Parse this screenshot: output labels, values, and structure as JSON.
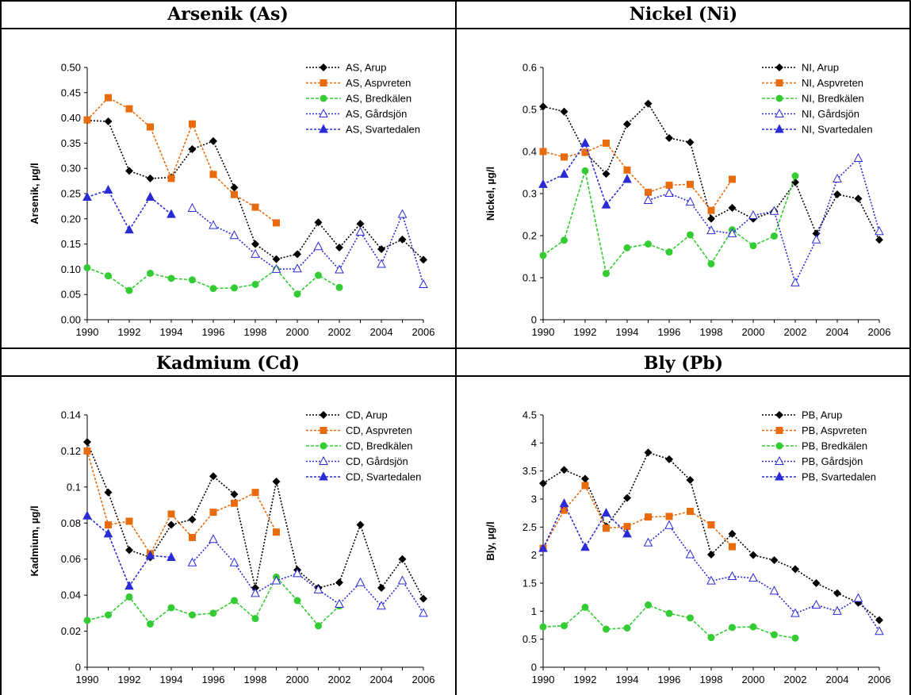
{
  "colors": {
    "arup": "#000000",
    "aspvreten": "#E86C0E",
    "bredkalen": "#33CC33",
    "gardsjon": "#2B2BD6",
    "svartedalen": "#2B2BD6"
  },
  "chart_data": [
    {
      "type": "line",
      "title": "Arsenik (As)",
      "ylabel": "Arsenik, µg/l",
      "xlabel": "",
      "xlim": [
        1990,
        2006
      ],
      "ylim": [
        0,
        0.5
      ],
      "xticks": [
        "1990",
        "1992",
        "1994",
        "1996",
        "1998",
        "2000",
        "2002",
        "2004",
        "2006"
      ],
      "yticks": [
        "0.00",
        "0.05",
        "0.10",
        "0.15",
        "0.20",
        "0.25",
        "0.30",
        "0.35",
        "0.40",
        "0.45",
        "0.50"
      ],
      "legend": "top-right",
      "grid": false,
      "series": [
        {
          "name": "AS, Arup",
          "key": "arup",
          "x": [
            1990,
            1991,
            1992,
            1993,
            1994,
            1995,
            1996,
            1997,
            1998,
            1999,
            2000,
            2001,
            2002,
            2003,
            2004,
            2005,
            2006
          ],
          "y": [
            0.395,
            0.393,
            0.295,
            0.28,
            0.282,
            0.338,
            0.354,
            0.262,
            0.15,
            0.12,
            0.13,
            0.193,
            0.143,
            0.19,
            0.14,
            0.159,
            0.119
          ]
        },
        {
          "name": "AS, Aspvreten",
          "key": "aspvreten",
          "x": [
            1990,
            1991,
            1992,
            1993,
            1994,
            1995,
            1996,
            1997,
            1998,
            1999
          ],
          "y": [
            0.396,
            0.44,
            0.418,
            0.382,
            0.28,
            0.388,
            0.288,
            0.248,
            0.223,
            0.192
          ]
        },
        {
          "name": "AS, Bredkälen",
          "key": "bredkalen",
          "x": [
            1990,
            1991,
            1992,
            1993,
            1994,
            1995,
            1996,
            1997,
            1998,
            1999,
            2000,
            2001,
            2002
          ],
          "y": [
            0.103,
            0.087,
            0.058,
            0.092,
            0.082,
            0.079,
            0.062,
            0.063,
            0.07,
            0.1,
            0.051,
            0.088,
            0.064
          ]
        },
        {
          "name": "AS, Gårdsjön",
          "key": "gardsjon",
          "x": [
            1995,
            1996,
            1997,
            1998,
            1999,
            2000,
            2001,
            2002,
            2003,
            2004,
            2005,
            2006
          ],
          "y": [
            0.221,
            0.187,
            0.167,
            0.13,
            0.1,
            0.101,
            0.145,
            0.099,
            0.174,
            0.11,
            0.209,
            0.07
          ]
        },
        {
          "name": "AS, Svartedalen",
          "key": "svartedalen",
          "x": [
            1990,
            1991,
            1992,
            1993,
            1994
          ],
          "y": [
            0.243,
            0.257,
            0.178,
            0.243,
            0.209
          ]
        }
      ]
    },
    {
      "type": "line",
      "title": "Nickel (Ni)",
      "ylabel": "Nickel, µg/l",
      "xlabel": "",
      "xlim": [
        1990,
        2006
      ],
      "ylim": [
        0,
        0.6
      ],
      "xticks": [
        "1990",
        "1992",
        "1994",
        "1996",
        "1998",
        "2000",
        "2002",
        "2004",
        "2006"
      ],
      "yticks": [
        "0",
        "0.1",
        "0.2",
        "0.3",
        "0.4",
        "0.5",
        "0.6"
      ],
      "legend": "top-right",
      "grid": false,
      "series": [
        {
          "name": "NI, Arup",
          "key": "arup",
          "x": [
            1990,
            1991,
            1992,
            1993,
            1994,
            1995,
            1996,
            1997,
            1998,
            1999,
            2000,
            2001,
            2002,
            2003,
            2004,
            2005,
            2006
          ],
          "y": [
            0.507,
            0.495,
            0.398,
            0.347,
            0.465,
            0.514,
            0.432,
            0.422,
            0.24,
            0.266,
            0.24,
            0.258,
            0.327,
            0.205,
            0.298,
            0.288,
            0.19
          ]
        },
        {
          "name": "NI, Aspvreten",
          "key": "aspvreten",
          "x": [
            1990,
            1991,
            1992,
            1993,
            1994,
            1995,
            1996,
            1997,
            1998,
            1999
          ],
          "y": [
            0.4,
            0.387,
            0.398,
            0.42,
            0.356,
            0.303,
            0.32,
            0.322,
            0.26,
            0.334
          ]
        },
        {
          "name": "NI, Bredkälen",
          "key": "bredkalen",
          "x": [
            1990,
            1991,
            1992,
            1993,
            1994,
            1995,
            1996,
            1997,
            1998,
            1999,
            2000,
            2001,
            2002
          ],
          "y": [
            0.153,
            0.189,
            0.354,
            0.11,
            0.171,
            0.18,
            0.161,
            0.202,
            0.133,
            0.214,
            0.176,
            0.199,
            0.342
          ]
        },
        {
          "name": "NI, Gårdsjön",
          "key": "gardsjon",
          "x": [
            1995,
            1996,
            1997,
            1998,
            1999,
            2000,
            2001,
            2002,
            2003,
            2004,
            2005,
            2006
          ],
          "y": [
            0.284,
            0.301,
            0.28,
            0.212,
            0.205,
            0.248,
            0.258,
            0.088,
            0.19,
            0.335,
            0.384,
            0.21
          ]
        },
        {
          "name": "NI, Svartedalen",
          "key": "svartedalen",
          "x": [
            1990,
            1991,
            1992,
            1993,
            1994
          ],
          "y": [
            0.322,
            0.346,
            0.42,
            0.273,
            0.334
          ]
        }
      ]
    },
    {
      "type": "line",
      "title": "Kadmium (Cd)",
      "ylabel": "Kadmium, µg/l",
      "xlabel": "",
      "xlim": [
        1990,
        2006
      ],
      "ylim": [
        0,
        0.14
      ],
      "xticks": [
        "1990",
        "1992",
        "1994",
        "1996",
        "1998",
        "2000",
        "2002",
        "2004",
        "2006"
      ],
      "yticks": [
        "0",
        "0.02",
        "0.04",
        "0.06",
        "0.08",
        "0.1",
        "0.12",
        "0.14"
      ],
      "legend": "top-right",
      "grid": false,
      "series": [
        {
          "name": "CD, Arup",
          "key": "arup",
          "x": [
            1990,
            1991,
            1992,
            1993,
            1994,
            1995,
            1996,
            1997,
            1998,
            1999,
            2000,
            2001,
            2002,
            2003,
            2004,
            2005,
            2006
          ],
          "y": [
            0.125,
            0.097,
            0.065,
            0.061,
            0.079,
            0.082,
            0.106,
            0.096,
            0.044,
            0.103,
            0.054,
            0.044,
            0.047,
            0.079,
            0.044,
            0.06,
            0.038
          ]
        },
        {
          "name": "CD, Aspvreten",
          "key": "aspvreten",
          "x": [
            1990,
            1991,
            1992,
            1993,
            1994,
            1995,
            1996,
            1997,
            1998,
            1999
          ],
          "y": [
            0.12,
            0.079,
            0.081,
            0.063,
            0.085,
            0.072,
            0.086,
            0.091,
            0.097,
            0.075
          ]
        },
        {
          "name": "CD, Bredkälen",
          "key": "bredkalen",
          "x": [
            1990,
            1991,
            1992,
            1993,
            1994,
            1995,
            1996,
            1997,
            1998,
            1999,
            2000,
            2001,
            2002
          ],
          "y": [
            0.026,
            0.029,
            0.039,
            0.024,
            0.033,
            0.029,
            0.03,
            0.037,
            0.027,
            0.05,
            0.037,
            0.023,
            0.034
          ]
        },
        {
          "name": "CD, Gårdsjön",
          "key": "gardsjon",
          "x": [
            1995,
            1996,
            1997,
            1998,
            1999,
            2000,
            2001,
            2002,
            2003,
            2004,
            2005,
            2006
          ],
          "y": [
            0.058,
            0.071,
            0.058,
            0.041,
            0.048,
            0.052,
            0.043,
            0.035,
            0.047,
            0.034,
            0.048,
            0.03
          ]
        },
        {
          "name": "CD, Svartedalen",
          "key": "svartedalen",
          "x": [
            1990,
            1991,
            1992,
            1993,
            1994
          ],
          "y": [
            0.084,
            0.074,
            0.045,
            0.062,
            0.061
          ]
        }
      ]
    },
    {
      "type": "line",
      "title": "Bly (Pb)",
      "ylabel": "Bly, µg/l",
      "xlabel": "",
      "xlim": [
        1990,
        2006
      ],
      "ylim": [
        0,
        4.5
      ],
      "xticks": [
        "1990",
        "1992",
        "1994",
        "1996",
        "1998",
        "2000",
        "2002",
        "2004",
        "2006"
      ],
      "yticks": [
        "0",
        "0.5",
        "1",
        "1.5",
        "2",
        "2.5",
        "3",
        "3.5",
        "4",
        "4.5"
      ],
      "legend": "top-right",
      "grid": false,
      "series": [
        {
          "name": "PB, Arup",
          "key": "arup",
          "x": [
            1990,
            1991,
            1992,
            1993,
            1994,
            1995,
            1996,
            1997,
            1998,
            1999,
            2000,
            2001,
            2002,
            2003,
            2004,
            2005,
            2006
          ],
          "y": [
            3.28,
            3.52,
            3.36,
            2.51,
            3.02,
            3.83,
            3.71,
            3.34,
            2.01,
            2.38,
            2.0,
            1.91,
            1.75,
            1.5,
            1.32,
            1.15,
            0.84
          ]
        },
        {
          "name": "PB, Aspvreten",
          "key": "aspvreten",
          "x": [
            1990,
            1991,
            1992,
            1993,
            1994,
            1995,
            1996,
            1997,
            1998,
            1999
          ],
          "y": [
            2.12,
            2.8,
            3.24,
            2.48,
            2.51,
            2.68,
            2.69,
            2.78,
            2.54,
            2.15
          ]
        },
        {
          "name": "PB, Bredkälen",
          "key": "bredkalen",
          "x": [
            1990,
            1991,
            1992,
            1993,
            1994,
            1995,
            1996,
            1997,
            1998,
            1999,
            2000,
            2001,
            2002
          ],
          "y": [
            0.72,
            0.74,
            1.07,
            0.68,
            0.7,
            1.11,
            0.96,
            0.88,
            0.53,
            0.71,
            0.72,
            0.58,
            0.52
          ]
        },
        {
          "name": "PB, Gårdsjön",
          "key": "gardsjon",
          "x": [
            1995,
            1996,
            1997,
            1998,
            1999,
            2000,
            2001,
            2002,
            2003,
            2004,
            2005,
            2006
          ],
          "y": [
            2.22,
            2.53,
            2.01,
            1.54,
            1.62,
            1.59,
            1.36,
            0.96,
            1.11,
            1.0,
            1.23,
            0.64
          ]
        },
        {
          "name": "PB, Svartedalen",
          "key": "svartedalen",
          "x": [
            1990,
            1991,
            1992,
            1993,
            1994
          ],
          "y": [
            2.12,
            2.92,
            2.14,
            2.75,
            2.38
          ]
        }
      ]
    }
  ]
}
